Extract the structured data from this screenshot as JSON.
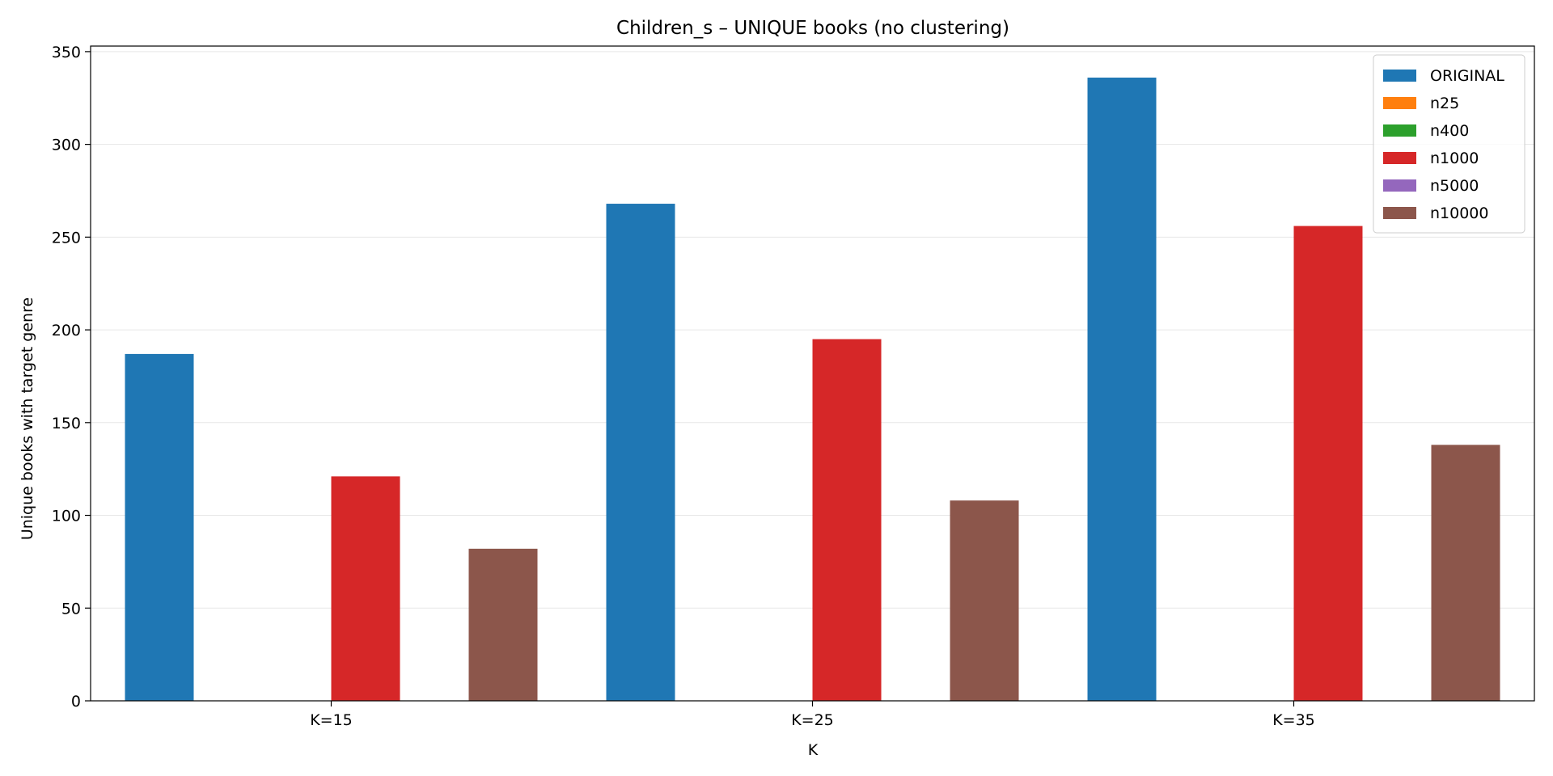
{
  "chart_data": {
    "type": "bar",
    "title": "Children_s – UNIQUE books (no clustering)",
    "xlabel": "K",
    "ylabel": "Unique books with target genre",
    "categories": [
      "K=15",
      "K=25",
      "K=35"
    ],
    "ylim": [
      0,
      353
    ],
    "yticks": [
      0,
      50,
      100,
      150,
      200,
      250,
      300,
      350
    ],
    "grid": "horizontal",
    "legend_position": "top-right",
    "series": [
      {
        "name": "ORIGINAL",
        "color": "#1f77b4",
        "values": [
          187,
          268,
          336
        ]
      },
      {
        "name": "n25",
        "color": "#ff7f0e",
        "values": [
          0,
          0,
          0
        ]
      },
      {
        "name": "n400",
        "color": "#2ca02c",
        "values": [
          0,
          0,
          0
        ]
      },
      {
        "name": "n1000",
        "color": "#d62728",
        "values": [
          121,
          195,
          256
        ]
      },
      {
        "name": "n5000",
        "color": "#9467bd",
        "values": [
          0,
          0,
          0
        ]
      },
      {
        "name": "n10000",
        "color": "#8c564b",
        "values": [
          82,
          108,
          138
        ]
      }
    ]
  }
}
